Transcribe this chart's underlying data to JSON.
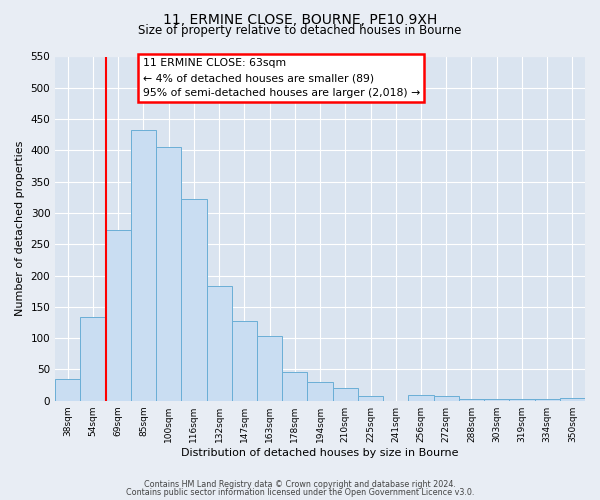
{
  "title": "11, ERMINE CLOSE, BOURNE, PE10 9XH",
  "subtitle": "Size of property relative to detached houses in Bourne",
  "xlabel": "Distribution of detached houses by size in Bourne",
  "ylabel": "Number of detached properties",
  "footnote1": "Contains HM Land Registry data © Crown copyright and database right 2024.",
  "footnote2": "Contains public sector information licensed under the Open Government Licence v3.0.",
  "bar_labels": [
    "38sqm",
    "54sqm",
    "69sqm",
    "85sqm",
    "100sqm",
    "116sqm",
    "132sqm",
    "147sqm",
    "163sqm",
    "178sqm",
    "194sqm",
    "210sqm",
    "225sqm",
    "241sqm",
    "256sqm",
    "272sqm",
    "288sqm",
    "303sqm",
    "319sqm",
    "334sqm",
    "350sqm"
  ],
  "bar_values": [
    35,
    133,
    272,
    432,
    405,
    322,
    183,
    127,
    103,
    46,
    30,
    20,
    8,
    0,
    9,
    8,
    3,
    3,
    3,
    3,
    5
  ],
  "bar_color": "#c9ddf2",
  "bar_edge_color": "#6aaed6",
  "ylim": [
    0,
    550
  ],
  "yticks": [
    0,
    50,
    100,
    150,
    200,
    250,
    300,
    350,
    400,
    450,
    500,
    550
  ],
  "red_line_index": 1.5,
  "annotation_title": "11 ERMINE CLOSE: 63sqm",
  "annotation_line1": "← 4% of detached houses are smaller (89)",
  "annotation_line2": "95% of semi-detached houses are larger (2,018) →",
  "fig_bg_color": "#e8edf4",
  "plot_bg_color": "#dae4f0"
}
